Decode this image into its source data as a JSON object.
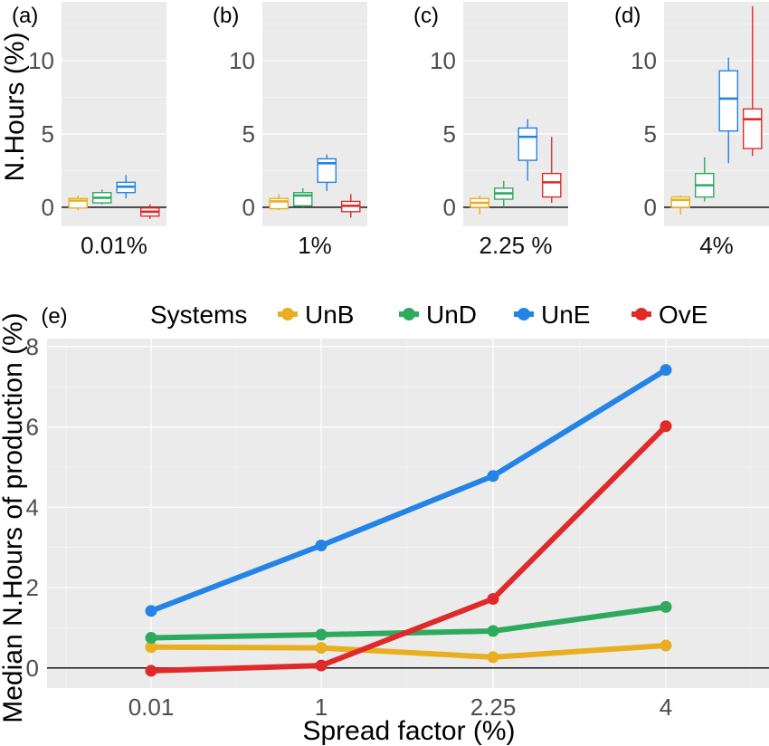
{
  "colors": {
    "UnB": "#E8B020",
    "UnD": "#2EAA5E",
    "UnE": "#2384E6",
    "OvE": "#E02A2A"
  },
  "top_panels": {
    "ylabel": "N.Hours (%)",
    "yticks": [
      "0",
      "5",
      "10"
    ]
  },
  "bottom_panel": {
    "tag": "(e)",
    "legend_title": "Systems",
    "xlabel": "Spread factor (%)",
    "ylabel": "Median N.Hours of production (%)",
    "xticks": [
      "0.01",
      "1",
      "2.25",
      "4"
    ],
    "yticks": [
      "0",
      "2",
      "4",
      "6",
      "8"
    ]
  },
  "chart_data": [
    {
      "type": "box",
      "tag": "(a)",
      "xlabel": "0.01%",
      "ylim": [
        -1.3,
        14
      ],
      "boxes": [
        {
          "system": "UnB",
          "min": -0.2,
          "q1": -0.05,
          "median": 0.45,
          "q3": 0.6,
          "max": 0.8
        },
        {
          "system": "UnD",
          "min": 0.2,
          "q1": 0.3,
          "median": 0.65,
          "q3": 1.0,
          "max": 1.2
        },
        {
          "system": "UnE",
          "min": 0.6,
          "q1": 1.0,
          "median": 1.4,
          "q3": 1.7,
          "max": 2.2
        },
        {
          "system": "OvE",
          "min": -0.8,
          "q1": -0.6,
          "median": -0.3,
          "q3": -0.05,
          "max": 0.2
        }
      ]
    },
    {
      "type": "box",
      "tag": "(b)",
      "xlabel": "1%",
      "ylim": [
        -1.3,
        14
      ],
      "boxes": [
        {
          "system": "UnB",
          "min": -0.2,
          "q1": -0.1,
          "median": 0.4,
          "q3": 0.6,
          "max": 0.9
        },
        {
          "system": "UnD",
          "min": 0.0,
          "q1": 0.1,
          "median": 0.8,
          "q3": 1.0,
          "max": 1.3
        },
        {
          "system": "UnE",
          "min": 1.1,
          "q1": 1.7,
          "median": 3.0,
          "q3": 3.3,
          "max": 3.6
        },
        {
          "system": "OvE",
          "min": -0.7,
          "q1": -0.3,
          "median": 0.1,
          "q3": 0.4,
          "max": 0.9
        }
      ]
    },
    {
      "type": "box",
      "tag": "(c)",
      "xlabel": "2.25 %",
      "ylim": [
        -1.3,
        14
      ],
      "boxes": [
        {
          "system": "UnB",
          "min": -0.5,
          "q1": 0.0,
          "median": 0.3,
          "q3": 0.6,
          "max": 0.8
        },
        {
          "system": "UnD",
          "min": 0.0,
          "q1": 0.55,
          "median": 0.95,
          "q3": 1.3,
          "max": 1.8
        },
        {
          "system": "UnE",
          "min": 1.8,
          "q1": 3.2,
          "median": 4.8,
          "q3": 5.4,
          "max": 6.0
        },
        {
          "system": "OvE",
          "min": 0.3,
          "q1": 0.7,
          "median": 1.7,
          "q3": 2.3,
          "max": 4.8
        }
      ]
    },
    {
      "type": "box",
      "tag": "(d)",
      "xlabel": "4%",
      "ylim": [
        -1.3,
        14
      ],
      "boxes": [
        {
          "system": "UnB",
          "min": -0.5,
          "q1": 0.0,
          "median": 0.5,
          "q3": 0.7,
          "max": 0.8
        },
        {
          "system": "UnD",
          "min": 0.4,
          "q1": 0.7,
          "median": 1.5,
          "q3": 2.3,
          "max": 3.4
        },
        {
          "system": "UnE",
          "min": 3.0,
          "q1": 5.2,
          "median": 7.4,
          "q3": 9.3,
          "max": 10.2
        },
        {
          "system": "OvE",
          "min": 3.5,
          "q1": 4.0,
          "median": 6.0,
          "q3": 6.7,
          "max": 13.7
        }
      ]
    },
    {
      "type": "line",
      "tag": "(e)",
      "x": [
        "0.01",
        "1",
        "2.25",
        "4"
      ],
      "xlabel": "Spread factor (%)",
      "ylabel": "Median N.Hours of production (%)",
      "ylim": [
        -0.5,
        8.2
      ],
      "legend_placement": "top",
      "series": [
        {
          "name": "UnB",
          "values": [
            0.52,
            0.5,
            0.27,
            0.56
          ]
        },
        {
          "name": "UnD",
          "values": [
            0.75,
            0.83,
            0.92,
            1.52
          ]
        },
        {
          "name": "UnE",
          "values": [
            1.42,
            3.05,
            4.78,
            7.42
          ]
        },
        {
          "name": "OvE",
          "values": [
            -0.07,
            0.06,
            1.72,
            6.02
          ]
        }
      ]
    }
  ]
}
